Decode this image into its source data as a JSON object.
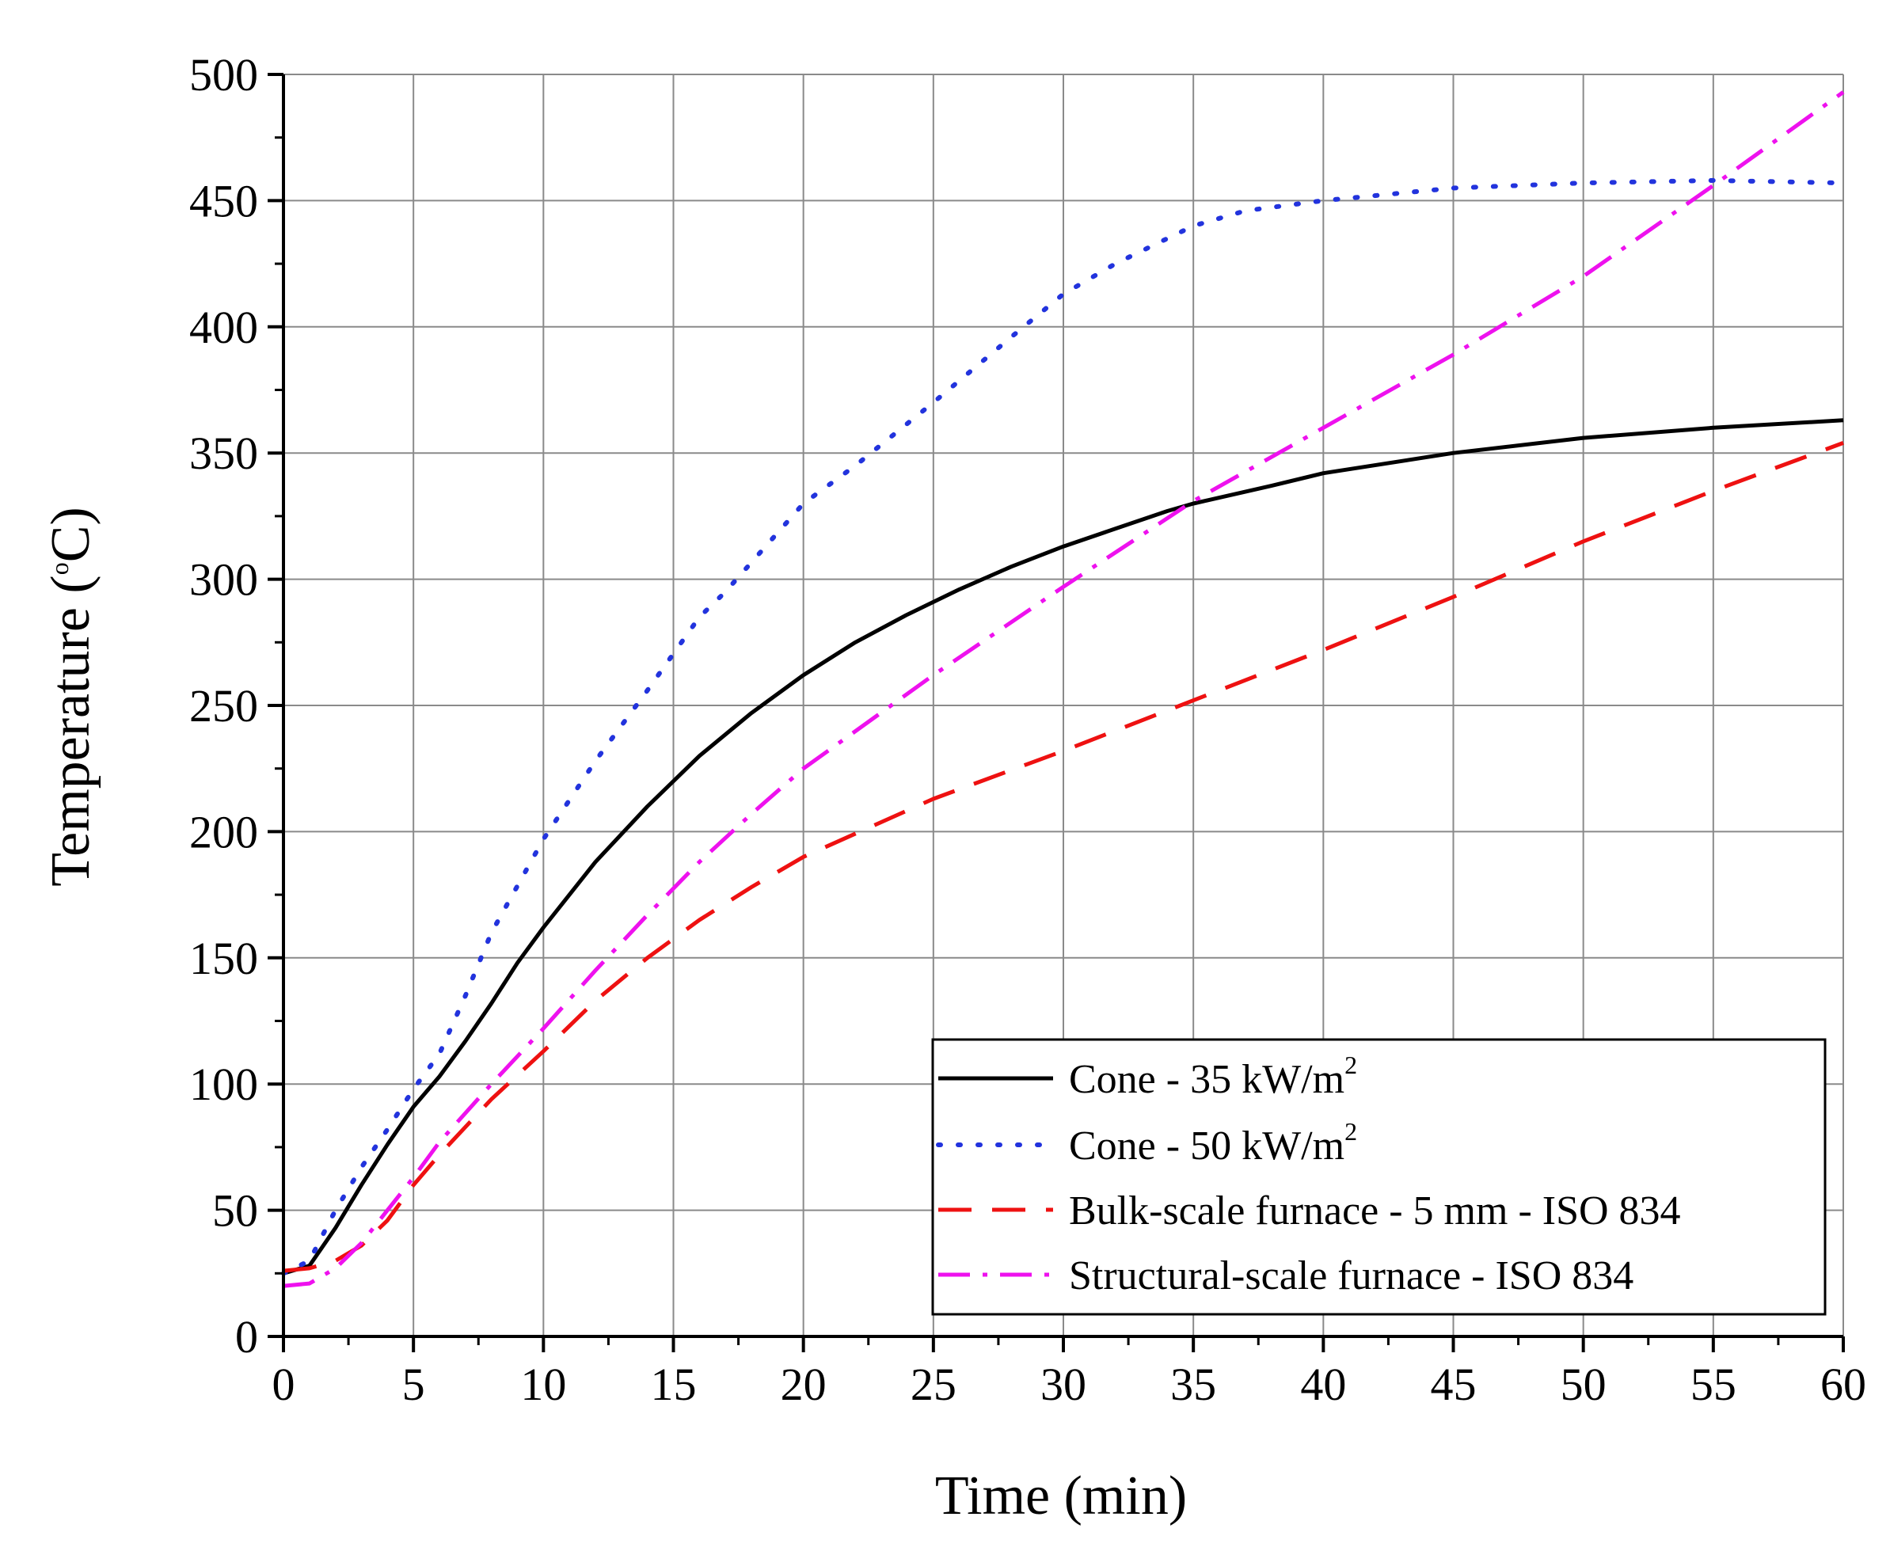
{
  "chart_data": {
    "type": "line",
    "title": "",
    "xlabel": "Time (min)",
    "ylabel_main": "Temperature (",
    "ylabel_sup": "o",
    "ylabel_end": "C)",
    "xlim": [
      0,
      60
    ],
    "ylim": [
      0,
      500
    ],
    "xticks": [
      0,
      5,
      10,
      15,
      20,
      25,
      30,
      35,
      40,
      45,
      50,
      55,
      60
    ],
    "yticks": [
      0,
      50,
      100,
      150,
      200,
      250,
      300,
      350,
      400,
      450,
      500
    ],
    "grid": true,
    "legend_position": "bottom-right",
    "series": [
      {
        "name": "Cone - 35 kW/m",
        "name_sup": "2",
        "color": "#000000",
        "style": "solid",
        "x": [
          0,
          1,
          2,
          3,
          4,
          5,
          6,
          7,
          8,
          9,
          10,
          12,
          14,
          16,
          18,
          20,
          22,
          24,
          26,
          28,
          30,
          32,
          34,
          35,
          38,
          40,
          45,
          50,
          55,
          60
        ],
        "y": [
          25,
          28,
          43,
          60,
          76,
          91,
          103,
          117,
          132,
          148,
          162,
          188,
          210,
          230,
          247,
          262,
          275,
          286,
          296,
          305,
          313,
          320,
          327,
          330,
          337,
          342,
          350,
          356,
          360,
          363
        ]
      },
      {
        "name": "Cone - 50 kW/m",
        "name_sup": "2",
        "color": "#2233dd",
        "style": "dotted",
        "x": [
          0,
          1,
          2,
          3,
          4,
          5,
          6,
          7,
          8,
          10,
          12,
          14,
          16,
          17,
          20,
          22,
          25,
          28,
          30,
          32,
          34,
          35,
          37,
          40,
          45,
          50,
          55,
          60
        ],
        "y": [
          25,
          30,
          50,
          67,
          82,
          98,
          112,
          135,
          160,
          197,
          228,
          256,
          285,
          295,
          330,
          345,
          370,
          396,
          413,
          425,
          435,
          440,
          446,
          450,
          455,
          457,
          458,
          457
        ]
      },
      {
        "name": "Bulk-scale furnace - 5 mm - ISO 834",
        "name_sup": "",
        "color": "#ee1111",
        "style": "dashed",
        "x": [
          0,
          1,
          2,
          3,
          4,
          5,
          6,
          8,
          10,
          12,
          14,
          16,
          18,
          20,
          25,
          30,
          35,
          40,
          45,
          50,
          55,
          60
        ],
        "y": [
          26,
          27,
          30,
          36,
          46,
          60,
          72,
          94,
          113,
          133,
          150,
          165,
          178,
          190,
          213,
          232,
          252,
          272,
          293,
          315,
          335,
          354
        ]
      },
      {
        "name": "Structural-scale furnace - ISO 834",
        "name_sup": "",
        "color": "#ee11ee",
        "style": "dashdot",
        "x": [
          0,
          1,
          2,
          3,
          4,
          5,
          6,
          8,
          10,
          12,
          14,
          16,
          18,
          20,
          25,
          30,
          35,
          40,
          45,
          50,
          55,
          60
        ],
        "y": [
          20,
          21,
          27,
          37,
          50,
          63,
          77,
          100,
          122,
          145,
          167,
          188,
          207,
          225,
          262,
          297,
          331,
          360,
          389,
          420,
          456,
          493
        ]
      }
    ]
  }
}
